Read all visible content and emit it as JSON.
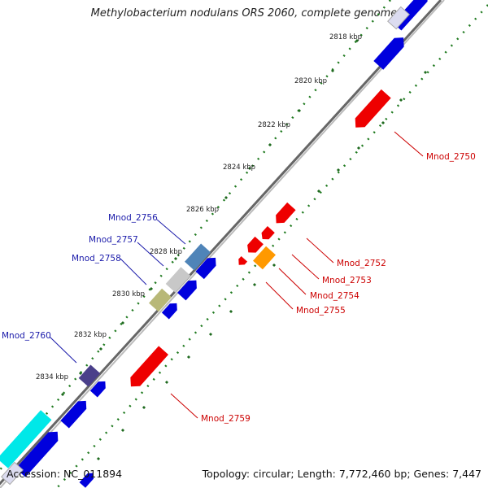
{
  "header": {
    "title": "Methylobacterium nodulans ORS 2060, complete genome"
  },
  "footer": {
    "accession": "Accession: NC_011894",
    "summary": "Topology: circular; Length: 7,772,460 bp; Genes: 7,447"
  },
  "ticks": [
    "2818 kbp",
    "2820 kbp",
    "2822 kbp",
    "2824 kbp",
    "2826 kbp",
    "2828 kbp",
    "2830 kbp",
    "2832 kbp",
    "2834 kbp"
  ],
  "gene_labels": {
    "mnod_2750": "Mnod_2750",
    "mnod_2752": "Mnod_2752",
    "mnod_2753": "Mnod_2753",
    "mnod_2754": "Mnod_2754",
    "mnod_2755": "Mnod_2755",
    "mnod_2756": "Mnod_2756",
    "mnod_2757": "Mnod_2757",
    "mnod_2758": "Mnod_2758",
    "mnod_2759": "Mnod_2759",
    "mnod_2760": "Mnod_2760"
  },
  "colors": {
    "backbone": "#888888",
    "forward_cds": "#0000dd",
    "reverse_cds": "#ee0000",
    "orange_cds": "#ff9900",
    "tick_green": "#2a7a2a",
    "label_blue": "#1a1aaa",
    "label_red": "#cc0000"
  }
}
